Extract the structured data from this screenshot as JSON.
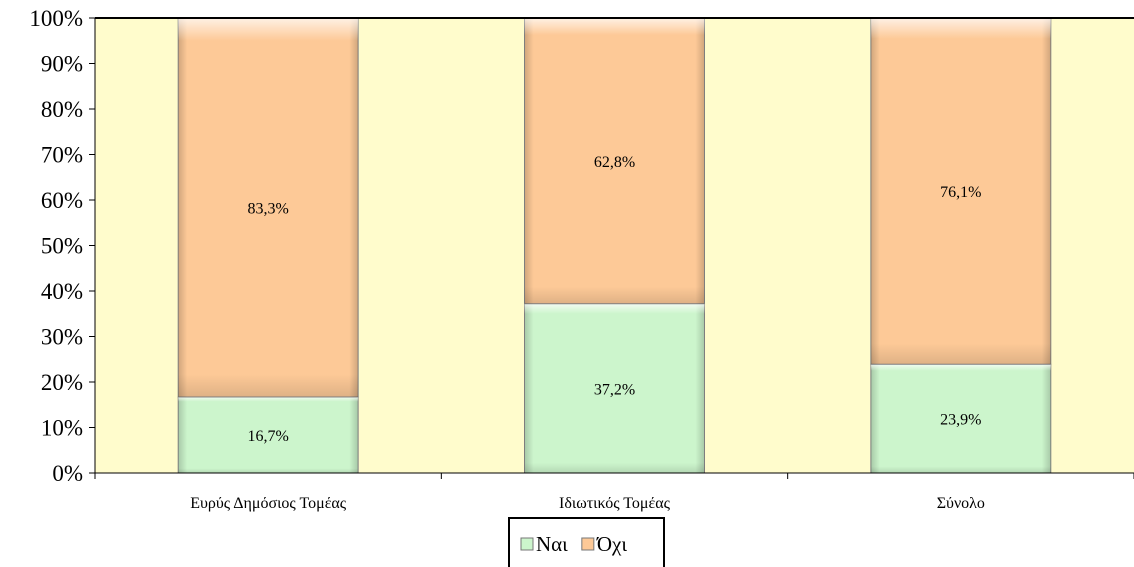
{
  "chart_data": {
    "type": "bar",
    "stacked": true,
    "percent": true,
    "categories": [
      "Ευρύς Δημόσιος Τομέας",
      "Ιδιωτικός Τομέας",
      "Σύνολο"
    ],
    "series": [
      {
        "name": "Ναι",
        "values": [
          16.7,
          37.2,
          23.9
        ],
        "labels": [
          "16,7%",
          "37,2%",
          "23,9%"
        ],
        "color": "#ccf5cc"
      },
      {
        "name": "Όχι",
        "values": [
          83.3,
          62.8,
          76.1
        ],
        "labels": [
          "83,3%",
          "62,8%",
          "76,1%"
        ],
        "color": "#fdc997"
      }
    ],
    "yticks": [
      "0%",
      "10%",
      "20%",
      "30%",
      "40%",
      "50%",
      "60%",
      "70%",
      "80%",
      "90%",
      "100%"
    ],
    "ylim": [
      0,
      100
    ],
    "plot_background": "#fffccc",
    "legend_position": "bottom",
    "grid": false
  }
}
